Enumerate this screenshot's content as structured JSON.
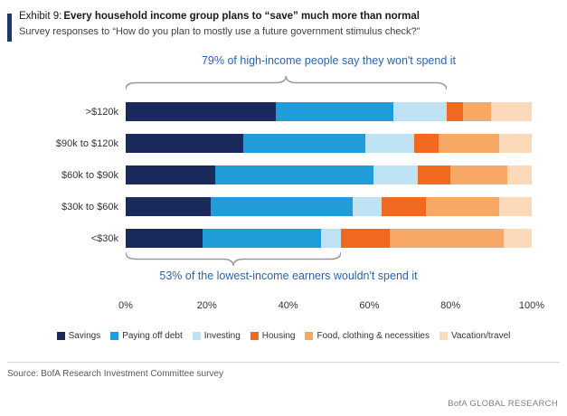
{
  "header": {
    "exhibit_label": "Exhibit 9:",
    "title": "Every household income group plans to “save” much more than normal",
    "subtitle": "Survey responses to “How do you plan to mostly use a future government stimulus check?”",
    "accent_color": "#1f3864"
  },
  "annotations": {
    "top": "79% of  high-income people say they won't spend it",
    "top_span_pct": 79,
    "bottom": "53% of the lowest-income earners wouldn't spend it",
    "bottom_span_pct": 53,
    "color": "#2e63a6"
  },
  "chart_data": {
    "type": "bar",
    "orientation": "horizontal",
    "stacked": true,
    "title": "Every household income group plans to \"save\" much more than normal",
    "categories": [
      ">$120k",
      "$90k to $120k",
      "$60k to $90k",
      "$30k to $60k",
      "<$30k"
    ],
    "series": [
      {
        "name": "Savings",
        "color": "#1a2a5c",
        "values": [
          37,
          29,
          22,
          21,
          19
        ]
      },
      {
        "name": "Paying off debt",
        "color": "#209cd8",
        "values": [
          29,
          30,
          39,
          35,
          29
        ]
      },
      {
        "name": "Investing",
        "color": "#bfe1f4",
        "values": [
          13,
          12,
          11,
          7,
          5
        ]
      },
      {
        "name": "Housing",
        "color": "#f1681f",
        "values": [
          4,
          6,
          8,
          11,
          12
        ]
      },
      {
        "name": "Food, clothing & necessities",
        "color": "#f7a865",
        "values": [
          7,
          15,
          14,
          18,
          28
        ]
      },
      {
        "name": "Vacation/travel",
        "color": "#fbd9b9",
        "values": [
          10,
          8,
          6,
          8,
          7
        ]
      }
    ],
    "x_ticks": [
      "0%",
      "20%",
      "40%",
      "60%",
      "80%",
      "100%"
    ],
    "xlim": [
      0,
      100
    ],
    "grid": false,
    "legend_position": "bottom"
  },
  "footer": {
    "source": "Source: BofA Research Investment Committee survey",
    "brand": "BofA GLOBAL RESEARCH"
  }
}
